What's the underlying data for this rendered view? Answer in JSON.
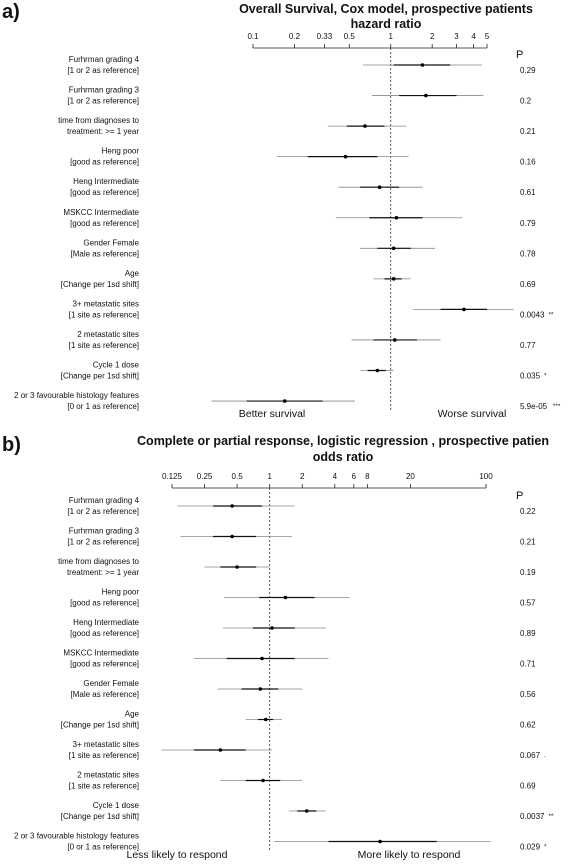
{
  "chart_data": [
    {
      "panel_label": "a)",
      "type": "forest",
      "title": "Overall Survival, Cox model, prospective patients",
      "subtitle": "hazard ratio",
      "scale": "log",
      "xlim": [
        0.1,
        5
      ],
      "ticks": [
        {
          "v": 0.1,
          "label": "0.1"
        },
        {
          "v": 0.2,
          "label": "0.2"
        },
        {
          "v": 0.33,
          "label": "0.33"
        },
        {
          "v": 0.5,
          "label": "0.5"
        },
        {
          "v": 1,
          "label": "1"
        },
        {
          "v": 2,
          "label": "2"
        },
        {
          "v": 3,
          "label": "3"
        },
        {
          "v": 4,
          "label": "4"
        },
        {
          "v": 5,
          "label": "5"
        }
      ],
      "reference": 1,
      "p_header": "P",
      "left_note": "Better survival",
      "right_note": "Worse survival",
      "rows": [
        {
          "line1": "Furhrman grading 4",
          "line2": "[1 or 2 as reference]",
          "est": 1.7,
          "ci50": [
            1.05,
            2.7
          ],
          "ci95": [
            0.63,
            4.6
          ],
          "p": "0.29"
        },
        {
          "line1": "Furhrman grading 3",
          "line2": "[1 or 2 as reference]",
          "est": 1.8,
          "ci50": [
            1.15,
            3.0
          ],
          "ci95": [
            0.73,
            4.7
          ],
          "p": "0.2"
        },
        {
          "line1": "time from diagnoses to",
          "line2": "treatment: >= 1 year",
          "est": 0.65,
          "ci50": [
            0.48,
            0.9
          ],
          "ci95": [
            0.35,
            1.3
          ],
          "p": "0.21"
        },
        {
          "line1": "Heng poor",
          "line2": "[good as reference]",
          "est": 0.47,
          "ci50": [
            0.25,
            0.8
          ],
          "ci95": [
            0.15,
            1.35
          ],
          "p": "0.16"
        },
        {
          "line1": "Heng Intermediate",
          "line2": "[good as reference]",
          "est": 0.83,
          "ci50": [
            0.6,
            1.15
          ],
          "ci95": [
            0.42,
            1.7
          ],
          "p": "0.61"
        },
        {
          "line1": "MSKCC Intermediate",
          "line2": "[good as reference]",
          "est": 1.1,
          "ci50": [
            0.7,
            1.7
          ],
          "ci95": [
            0.4,
            3.3
          ],
          "p": "0.79"
        },
        {
          "line1": "Gender Female",
          "line2": "[Male as reference]",
          "est": 1.05,
          "ci50": [
            0.8,
            1.4
          ],
          "ci95": [
            0.6,
            2.1
          ],
          "p": "0.78"
        },
        {
          "line1": "Age",
          "line2": "[Change per 1sd shift]",
          "est": 1.05,
          "ci50": [
            0.9,
            1.2
          ],
          "ci95": [
            0.75,
            1.4
          ],
          "p": "0.69"
        },
        {
          "line1": "3+ metastatic sites",
          "line2": "[1 site as reference]",
          "est": 3.4,
          "ci50": [
            2.3,
            5.0
          ],
          "ci95": [
            1.45,
            7.8
          ],
          "p": "0.0043",
          "sig": "**"
        },
        {
          "line1": "2 metastatic sites",
          "line2": "[1 site as reference]",
          "est": 1.07,
          "ci50": [
            0.75,
            1.55
          ],
          "ci95": [
            0.52,
            2.3
          ],
          "p": "0.77"
        },
        {
          "line1": "Cycle 1 dose",
          "line2": "[Change per 1sd shift]",
          "est": 0.8,
          "ci50": [
            0.68,
            0.92
          ],
          "ci95": [
            0.6,
            1.05
          ],
          "p": "0.035",
          "sig": "*"
        },
        {
          "line1": "2 or 3 favourable histology features",
          "line2": "[0 or 1 as reference]",
          "est": 0.17,
          "ci50": [
            0.09,
            0.32
          ],
          "ci95": [
            0.05,
            0.55
          ],
          "p": "5.9e-05",
          "sig": "***"
        }
      ]
    },
    {
      "panel_label": "b)",
      "type": "forest",
      "title": "Complete or partial response, logistic regression , prospective patien",
      "subtitle": "odds ratio",
      "scale": "log",
      "xlim": [
        0.125,
        100
      ],
      "ticks": [
        {
          "v": 0.125,
          "label": "0.125"
        },
        {
          "v": 0.25,
          "label": "0.25"
        },
        {
          "v": 0.5,
          "label": "0.5"
        },
        {
          "v": 1,
          "label": "1"
        },
        {
          "v": 2,
          "label": "2"
        },
        {
          "v": 4,
          "label": "4"
        },
        {
          "v": 6,
          "label": "6"
        },
        {
          "v": 8,
          "label": "8"
        },
        {
          "v": 20,
          "label": "20"
        },
        {
          "v": 100,
          "label": "100"
        }
      ],
      "reference": 1,
      "p_header": "P",
      "left_note": "Less likely to respond",
      "right_note": "More likely to respond",
      "rows": [
        {
          "line1": "Furhrman grading 4",
          "line2": "[1 or 2 as reference]",
          "est": 0.45,
          "ci50": [
            0.3,
            0.85
          ],
          "ci95": [
            0.14,
            1.7
          ],
          "p": "0.22"
        },
        {
          "line1": "Furhrman grading 3",
          "line2": "[1 or 2 as reference]",
          "est": 0.45,
          "ci50": [
            0.3,
            0.75
          ],
          "ci95": [
            0.15,
            1.6
          ],
          "p": "0.21"
        },
        {
          "line1": "time from diagnoses to",
          "line2": "treatment: >= 1 year",
          "est": 0.5,
          "ci50": [
            0.35,
            0.75
          ],
          "ci95": [
            0.25,
            1.0
          ],
          "p": "0.19"
        },
        {
          "line1": "Heng poor",
          "line2": "[good as reference]",
          "est": 1.4,
          "ci50": [
            0.8,
            2.6
          ],
          "ci95": [
            0.38,
            5.5
          ],
          "p": "0.57"
        },
        {
          "line1": "Heng Intermediate",
          "line2": "[good as reference]",
          "est": 1.05,
          "ci50": [
            0.7,
            1.7
          ],
          "ci95": [
            0.37,
            3.3
          ],
          "p": "0.89"
        },
        {
          "line1": "MSKCC Intermediate",
          "line2": "[good as reference]",
          "est": 0.85,
          "ci50": [
            0.4,
            1.7
          ],
          "ci95": [
            0.2,
            3.5
          ],
          "p": "0.71"
        },
        {
          "line1": "Gender Female",
          "line2": "[Male as reference]",
          "est": 0.82,
          "ci50": [
            0.55,
            1.2
          ],
          "ci95": [
            0.33,
            2.0
          ],
          "p": "0.56"
        },
        {
          "line1": "Age",
          "line2": "[Change per 1sd shift]",
          "est": 0.92,
          "ci50": [
            0.78,
            1.08
          ],
          "ci95": [
            0.6,
            1.3
          ],
          "p": "0.62"
        },
        {
          "line1": "3+ metastatic sites",
          "line2": "[1 site as reference]",
          "est": 0.35,
          "ci50": [
            0.2,
            0.6
          ],
          "ci95": [
            0.1,
            1.05
          ],
          "p": "0.067",
          "sig": "."
        },
        {
          "line1": "2 metastatic sites",
          "line2": "[1 site as reference]",
          "est": 0.87,
          "ci50": [
            0.6,
            1.25
          ],
          "ci95": [
            0.35,
            2.0
          ],
          "p": "0.69"
        },
        {
          "line1": "Cycle 1 dose",
          "line2": "[Change per 1sd shift]",
          "est": 2.2,
          "ci50": [
            1.8,
            2.7
          ],
          "ci95": [
            1.5,
            3.3
          ],
          "p": "0.0037",
          "sig": "**"
        },
        {
          "line1": "2 or 3 favourable histology features",
          "line2": "[0 or 1 as reference]",
          "est": 10.5,
          "ci50": [
            3.5,
            35
          ],
          "ci95": [
            1.1,
            110
          ],
          "p": "0.029",
          "sig": "*"
        }
      ]
    }
  ]
}
